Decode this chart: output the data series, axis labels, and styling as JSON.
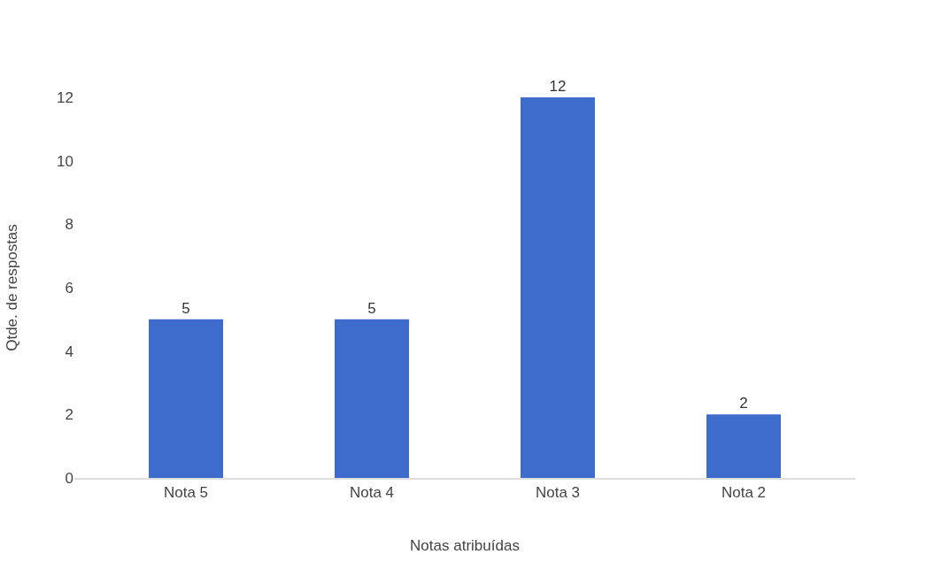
{
  "chart_data": {
    "type": "bar",
    "xlabel": "Notas atribuídas",
    "ylabel": "Qtde. de respostas",
    "categories": [
      "Nota 5",
      "Nota 4",
      "Nota 3",
      "Nota 2"
    ],
    "values": [
      5,
      5,
      12,
      2
    ],
    "color": "#3d6ccc",
    "ylim": [
      0,
      12
    ],
    "yticks": [
      0,
      2,
      4,
      6,
      8,
      10,
      12
    ],
    "grid": false,
    "data_labels": true
  }
}
